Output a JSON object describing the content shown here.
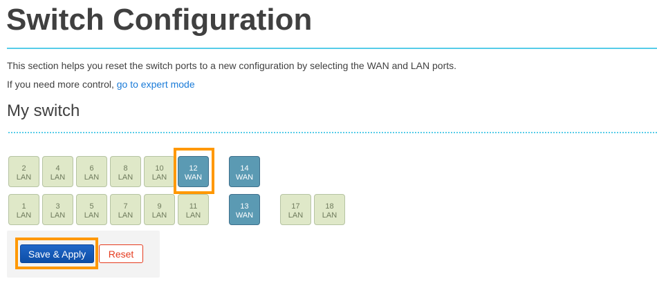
{
  "page": {
    "title": "Switch Configuration",
    "description": "This section helps you reset the switch ports to a new configuration by selecting the WAN and LAN ports.",
    "control_prefix": "If you need more control, ",
    "expert_link": "go to expert mode",
    "section_title": "My switch"
  },
  "ports": [
    {
      "number": "2",
      "type": "LAN",
      "highlighted": false
    },
    {
      "number": "4",
      "type": "LAN",
      "highlighted": false
    },
    {
      "number": "6",
      "type": "LAN",
      "highlighted": false
    },
    {
      "number": "8",
      "type": "LAN",
      "highlighted": false
    },
    {
      "number": "10",
      "type": "LAN",
      "highlighted": false
    },
    {
      "number": "12",
      "type": "WAN",
      "highlighted": true
    },
    {
      "number": "14",
      "type": "WAN",
      "highlighted": false
    },
    {
      "number": "1",
      "type": "LAN",
      "highlighted": false
    },
    {
      "number": "3",
      "type": "LAN",
      "highlighted": false
    },
    {
      "number": "5",
      "type": "LAN",
      "highlighted": false
    },
    {
      "number": "7",
      "type": "LAN",
      "highlighted": false
    },
    {
      "number": "9",
      "type": "LAN",
      "highlighted": false
    },
    {
      "number": "11",
      "type": "LAN",
      "highlighted": false
    },
    {
      "number": "13",
      "type": "WAN",
      "highlighted": false
    },
    {
      "number": "17",
      "type": "LAN",
      "highlighted": false
    },
    {
      "number": "18",
      "type": "LAN",
      "highlighted": false
    }
  ],
  "actions": {
    "save_label": "Save & Apply",
    "reset_label": "Reset",
    "save_highlighted": true
  },
  "colors": {
    "accent": "#55cce8",
    "lan": "#dfe8c8",
    "wan": "#5b9ab3",
    "highlight": "#ff9800",
    "primary": "#1f67c8",
    "danger": "#e53a1d"
  }
}
